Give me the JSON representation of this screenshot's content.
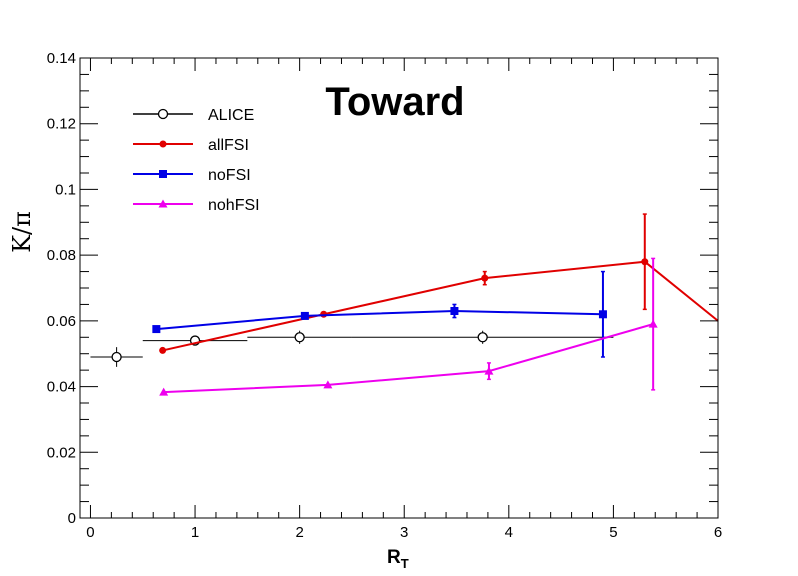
{
  "chart_data": {
    "type": "line",
    "title": "Toward",
    "xlabel": "R",
    "xlabel_subscript": "T",
    "ylabel": "K/π",
    "xlim": [
      -0.1,
      6
    ],
    "ylim": [
      0,
      0.14
    ],
    "xticks": [
      0,
      1,
      2,
      3,
      4,
      5,
      6
    ],
    "yticks": [
      0,
      0.02,
      0.04,
      0.06,
      0.08,
      0.1,
      0.12,
      0.14
    ],
    "grid": false,
    "legend_position": "top-left",
    "series": [
      {
        "name": "ALICE",
        "color": "#000000",
        "marker": "open-circle",
        "connect": false,
        "points": [
          {
            "x": 0.25,
            "y": 0.049,
            "xerr": 0.25,
            "yerr": 0.003
          },
          {
            "x": 1.0,
            "y": 0.054,
            "xerr": 0.5,
            "yerr": 0.0015
          },
          {
            "x": 2.0,
            "y": 0.055,
            "xerr": 0.5,
            "yerr": 0.002
          },
          {
            "x": 3.75,
            "y": 0.055,
            "xerr": 1.25,
            "yerr": 0.002
          }
        ]
      },
      {
        "name": "allFSI",
        "color": "#e00000",
        "marker": "filled-circle",
        "connect": true,
        "points": [
          {
            "x": 0.69,
            "y": 0.051,
            "xerr": 0,
            "yerr": 0
          },
          {
            "x": 2.23,
            "y": 0.062,
            "xerr": 0,
            "yerr": 0
          },
          {
            "x": 3.77,
            "y": 0.073,
            "xerr": 0,
            "yerr": 0.002
          },
          {
            "x": 5.3,
            "y": 0.078,
            "xerr": 0,
            "yerr": 0.0145
          },
          {
            "x": 6.0,
            "y": 0.06,
            "xerr": 0,
            "yerr": 0,
            "noMarker": true
          }
        ]
      },
      {
        "name": "noFSI",
        "color": "#0000e6",
        "marker": "filled-square",
        "connect": true,
        "points": [
          {
            "x": 0.63,
            "y": 0.0575,
            "xerr": 0,
            "yerr": 0
          },
          {
            "x": 2.05,
            "y": 0.0615,
            "xerr": 0,
            "yerr": 0
          },
          {
            "x": 3.48,
            "y": 0.063,
            "xerr": 0,
            "yerr": 0.002
          },
          {
            "x": 4.9,
            "y": 0.062,
            "xerr": 0,
            "yerr": 0.013
          }
        ]
      },
      {
        "name": "nohFSI",
        "color": "#ee00ee",
        "marker": "filled-triangle",
        "connect": true,
        "points": [
          {
            "x": 0.7,
            "y": 0.0383,
            "xerr": 0,
            "yerr": 0
          },
          {
            "x": 2.27,
            "y": 0.0405,
            "xerr": 0,
            "yerr": 0
          },
          {
            "x": 3.81,
            "y": 0.0447,
            "xerr": 0,
            "yerr": 0.0025
          },
          {
            "x": 5.38,
            "y": 0.059,
            "xerr": 0,
            "yerr": 0.02
          }
        ]
      }
    ]
  }
}
